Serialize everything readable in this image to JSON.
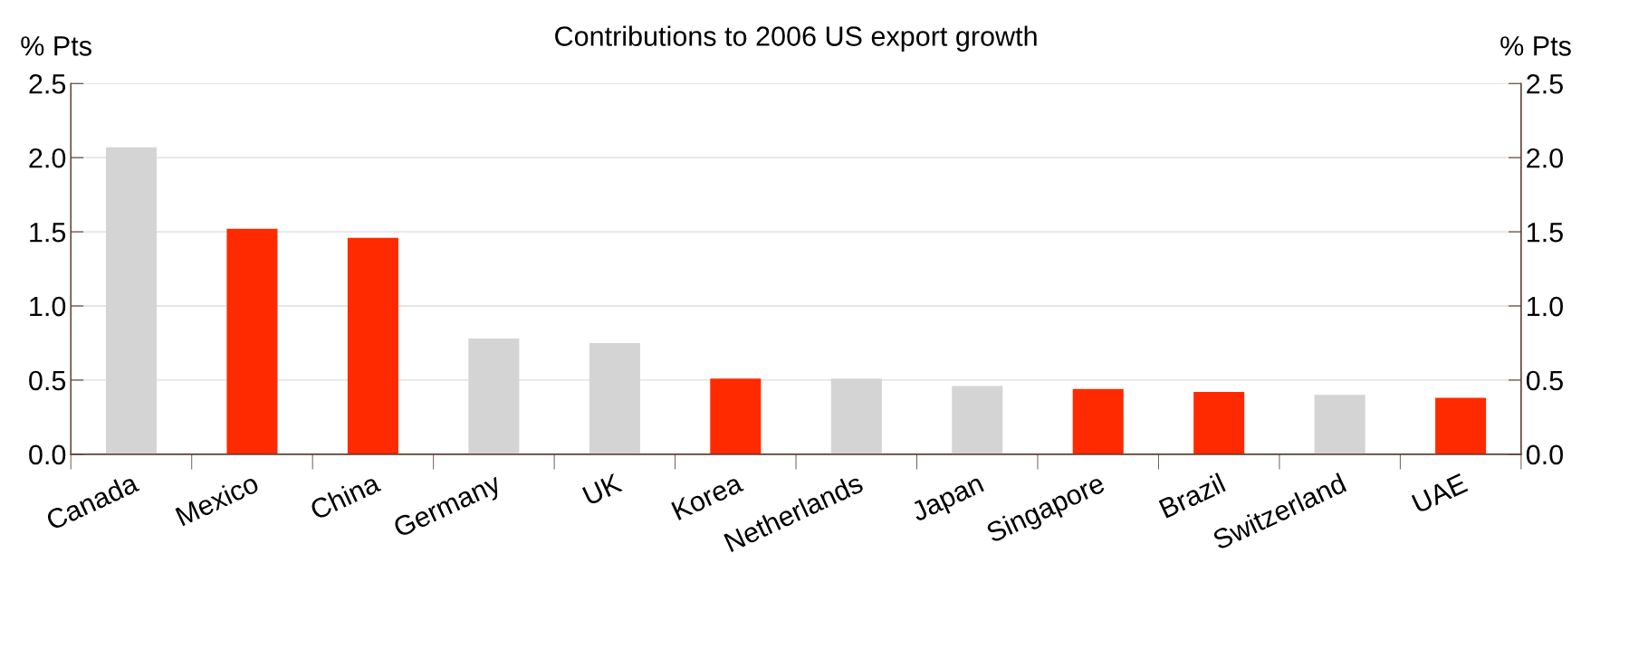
{
  "chart_data": {
    "type": "bar",
    "title": "Contributions to 2006 US export growth",
    "categories": [
      "Canada",
      "Mexico",
      "China",
      "Germany",
      "UK",
      "Korea",
      "Netherlands",
      "Japan",
      "Singapore",
      "Brazil",
      "Switzerland",
      "UAE"
    ],
    "values": [
      2.07,
      1.52,
      1.46,
      0.78,
      0.75,
      0.51,
      0.51,
      0.46,
      0.44,
      0.42,
      0.4,
      0.38
    ],
    "colors": [
      "#d4d4d4",
      "#ff2a00",
      "#ff2a00",
      "#d4d4d4",
      "#d4d4d4",
      "#ff2a00",
      "#d4d4d4",
      "#d4d4d4",
      "#ff2a00",
      "#ff2a00",
      "#d4d4d4",
      "#ff2a00"
    ],
    "ylabel": "% Pts",
    "y2label": "% Pts",
    "ylim": [
      0,
      2.5
    ],
    "yticks": [
      {
        "value": 0,
        "label": "0.0"
      },
      {
        "value": 0.5,
        "label": "0.5"
      },
      {
        "value": 1,
        "label": "1.0"
      },
      {
        "value": 1.5,
        "label": "1.5"
      },
      {
        "value": 2,
        "label": "2.0"
      },
      {
        "value": 2.5,
        "label": "2.5"
      }
    ],
    "y2lim": [
      0,
      2.5
    ],
    "y2ticks": [
      {
        "value": 0,
        "label": "0.0"
      },
      {
        "value": 0.5,
        "label": "0.5"
      },
      {
        "value": 1,
        "label": "1.0"
      },
      {
        "value": 1.5,
        "label": "1.5"
      },
      {
        "value": 2,
        "label": "2.0"
      },
      {
        "value": 2.5,
        "label": "2.5"
      }
    ],
    "grid": "y",
    "legend": false
  }
}
